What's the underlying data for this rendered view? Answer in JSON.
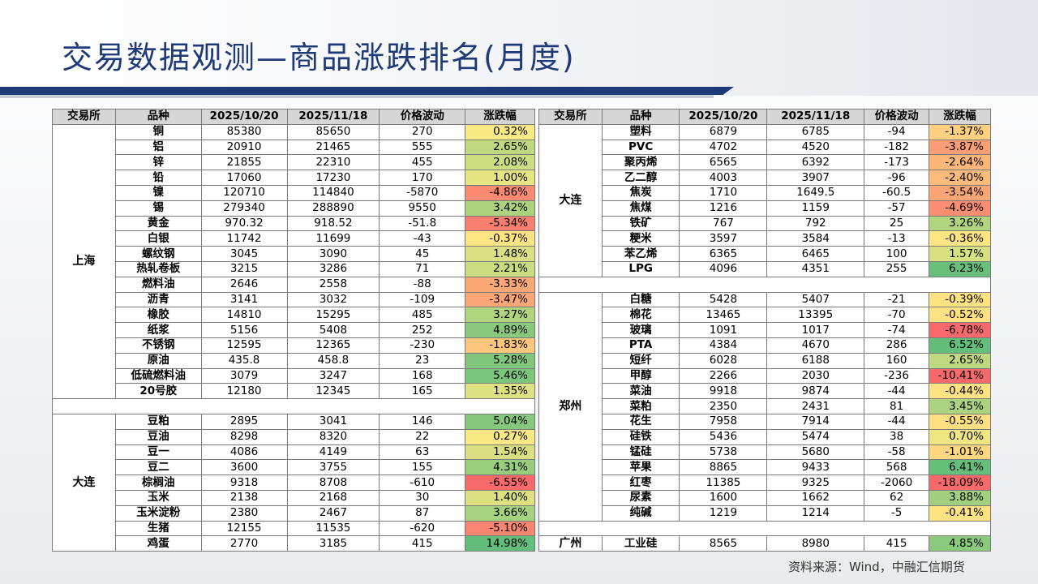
{
  "title": "交易数据观测—商品涨跌排名(月度)",
  "source": "资料来源：Wind，中融汇信期货",
  "headers": [
    "交易所",
    "品种",
    "2025/10/20",
    "2025/11/18",
    "价格波动",
    "涨跌幅"
  ],
  "left_groups": [
    {
      "exchange": "上海",
      "rows": [
        [
          "铜",
          "85380",
          "85650",
          "270",
          "0.32%"
        ],
        [
          "铝",
          "20910",
          "21465",
          "555",
          "2.65%"
        ],
        [
          "锌",
          "21855",
          "22310",
          "455",
          "2.08%"
        ],
        [
          "铅",
          "17060",
          "17230",
          "170",
          "1.00%"
        ],
        [
          "镍",
          "120710",
          "114840",
          "-5870",
          "-4.86%"
        ],
        [
          "锡",
          "279340",
          "288890",
          "9550",
          "3.42%"
        ],
        [
          "黄金",
          "970.32",
          "918.52",
          "-51.8",
          "-5.34%"
        ],
        [
          "白银",
          "11742",
          "11699",
          "-43",
          "-0.37%"
        ],
        [
          "螺纹钢",
          "3045",
          "3090",
          "45",
          "1.48%"
        ],
        [
          "热轧卷板",
          "3215",
          "3286",
          "71",
          "2.21%"
        ],
        [
          "燃料油",
          "2646",
          "2558",
          "-88",
          "-3.33%"
        ],
        [
          "沥青",
          "3141",
          "3032",
          "-109",
          "-3.47%"
        ],
        [
          "橡胶",
          "14810",
          "15295",
          "485",
          "3.27%"
        ],
        [
          "纸浆",
          "5156",
          "5408",
          "252",
          "4.89%"
        ],
        [
          "不锈钢",
          "12595",
          "12365",
          "-230",
          "-1.83%"
        ],
        [
          "原油",
          "435.8",
          "458.8",
          "23",
          "5.28%"
        ],
        [
          "低硫燃料油",
          "3079",
          "3247",
          "168",
          "5.46%"
        ],
        [
          "20号胶",
          "12180",
          "12345",
          "165",
          "1.35%"
        ]
      ]
    },
    {
      "exchange": "大连",
      "rows": [
        [
          "豆粕",
          "2895",
          "3041",
          "146",
          "5.04%"
        ],
        [
          "豆油",
          "8298",
          "8320",
          "22",
          "0.27%"
        ],
        [
          "豆一",
          "4086",
          "4149",
          "63",
          "1.54%"
        ],
        [
          "豆二",
          "3600",
          "3755",
          "155",
          "4.31%"
        ],
        [
          "棕榈油",
          "9318",
          "8708",
          "-610",
          "-6.55%"
        ],
        [
          "玉米",
          "2138",
          "2168",
          "30",
          "1.40%"
        ],
        [
          "玉米淀粉",
          "2380",
          "2467",
          "87",
          "3.66%"
        ],
        [
          "生猪",
          "12155",
          "11535",
          "-620",
          "-5.10%"
        ],
        [
          "鸡蛋",
          "2770",
          "3185",
          "415",
          "14.98%"
        ]
      ]
    }
  ],
  "right_groups": [
    {
      "exchange": "大连",
      "rows": [
        [
          "塑料",
          "6879",
          "6785",
          "-94",
          "-1.37%"
        ],
        [
          "PVC",
          "4702",
          "4520",
          "-182",
          "-3.87%"
        ],
        [
          "聚丙烯",
          "6565",
          "6392",
          "-173",
          "-2.64%"
        ],
        [
          "乙二醇",
          "4003",
          "3907",
          "-96",
          "-2.40%"
        ],
        [
          "焦炭",
          "1710",
          "1649.5",
          "-60.5",
          "-3.54%"
        ],
        [
          "焦煤",
          "1216",
          "1159",
          "-57",
          "-4.69%"
        ],
        [
          "铁矿",
          "767",
          "792",
          "25",
          "3.26%"
        ],
        [
          "粳米",
          "3597",
          "3584",
          "-13",
          "-0.36%"
        ],
        [
          "苯乙烯",
          "6365",
          "6465",
          "100",
          "1.57%"
        ],
        [
          "LPG",
          "4096",
          "4351",
          "255",
          "6.23%"
        ]
      ]
    },
    {
      "exchange": "郑州",
      "rows": [
        [
          "白糖",
          "5428",
          "5407",
          "-21",
          "-0.39%"
        ],
        [
          "棉花",
          "13465",
          "13395",
          "-70",
          "-0.52%"
        ],
        [
          "玻璃",
          "1091",
          "1017",
          "-74",
          "-6.78%"
        ],
        [
          "PTA",
          "4384",
          "4670",
          "286",
          "6.52%"
        ],
        [
          "短纤",
          "6028",
          "6188",
          "160",
          "2.65%"
        ],
        [
          "甲醇",
          "2266",
          "2030",
          "-236",
          "-10.41%"
        ],
        [
          "菜油",
          "9918",
          "9874",
          "-44",
          "-0.44%"
        ],
        [
          "菜粕",
          "2350",
          "2431",
          "81",
          "3.45%"
        ],
        [
          "花生",
          "7958",
          "7914",
          "-44",
          "-0.55%"
        ],
        [
          "硅铁",
          "5436",
          "5474",
          "38",
          "0.70%"
        ],
        [
          "锰硅",
          "5738",
          "5680",
          "-58",
          "-1.01%"
        ],
        [
          "苹果",
          "8865",
          "9433",
          "568",
          "6.41%"
        ],
        [
          "红枣",
          "11385",
          "9325",
          "-2060",
          "-18.09%"
        ],
        [
          "尿素",
          "1600",
          "1662",
          "62",
          "3.88%"
        ],
        [
          "纯碱",
          "1219",
          "1214",
          "-5",
          "-0.41%"
        ]
      ]
    },
    {
      "exchange": "广州",
      "rows": [
        [
          "工业硅",
          "8565",
          "8980",
          "415",
          "4.85%"
        ]
      ]
    }
  ],
  "colors": {
    "title": "#1f3a78",
    "header_bg": "#d6d6d6",
    "negative_deep": "#f8696b",
    "neutral": "#ffeb84",
    "positive_deep": "#63be7b"
  }
}
